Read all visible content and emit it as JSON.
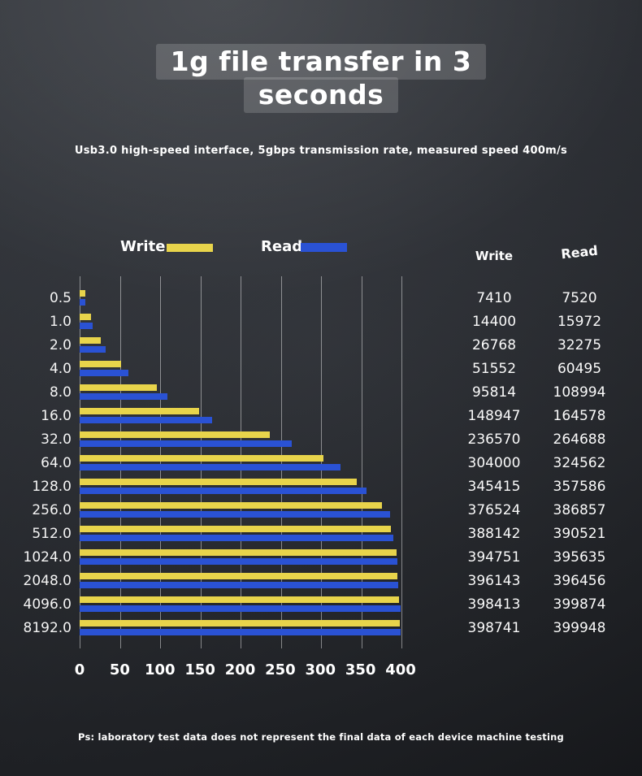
{
  "header": {
    "title_line1": "1g file transfer in 3",
    "title_line2": "seconds",
    "subtitle": "Usb3.0 high-speed interface, 5gbps transmission rate, measured speed 400m/s"
  },
  "legend": {
    "write_label": "Write",
    "read_label": "Read"
  },
  "table": {
    "write_header": "Write",
    "read_header": "Read"
  },
  "footer": {
    "note": "Ps: laboratory test data does not represent the final data of each device machine testing"
  },
  "colors": {
    "write_bar": "#e8d44b",
    "read_bar": "#2a52d4",
    "gridline": "rgba(255,255,255,0.45)",
    "background_top": "#3b3f46",
    "background_bottom": "#17191d"
  },
  "chart_data": {
    "type": "bar",
    "orientation": "horizontal",
    "title": "1g file transfer in 3 seconds",
    "grid": true,
    "legend_position": "top",
    "categories": [
      "0.5",
      "1.0",
      "2.0",
      "4.0",
      "8.0",
      "16.0",
      "32.0",
      "64.0",
      "128.0",
      "256.0",
      "512.0",
      "1024.0",
      "2048.0",
      "4096.0",
      "8192.0"
    ],
    "series": [
      {
        "name": "Write",
        "values": [
          7410,
          14400,
          26768,
          51552,
          95814,
          148947,
          236570,
          304000,
          345415,
          376524,
          388142,
          394751,
          396143,
          398413,
          398741
        ]
      },
      {
        "name": "Read",
        "values": [
          7520,
          15972,
          32275,
          60495,
          108994,
          164578,
          264688,
          324562,
          357586,
          386857,
          390521,
          395635,
          396456,
          399874,
          399948
        ]
      }
    ],
    "x_ticks": [
      0,
      50,
      100,
      150,
      200,
      250,
      300,
      350,
      400
    ],
    "xlim": [
      0,
      400
    ],
    "value_display_divisor": 1000
  }
}
